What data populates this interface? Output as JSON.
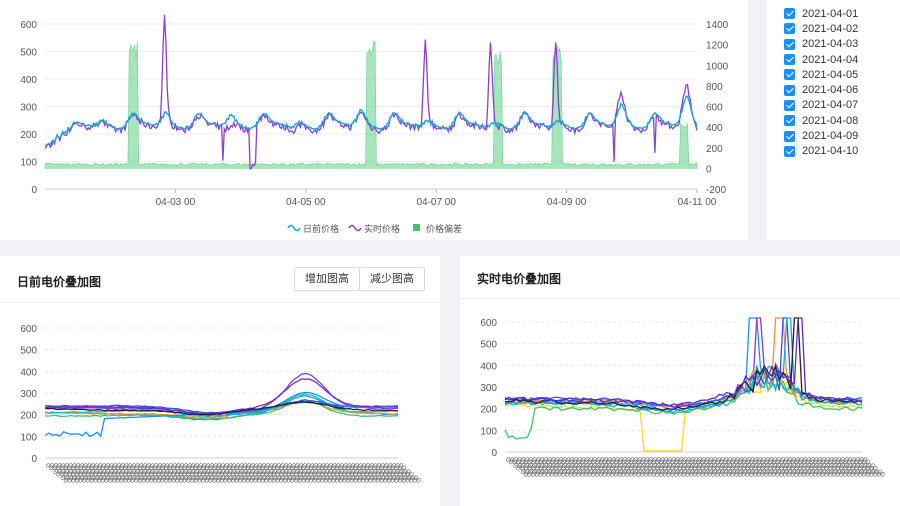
{
  "main_chart": {
    "legend": [
      {
        "label": "日前价格",
        "color": "#1ba3d4"
      },
      {
        "label": "实时价格",
        "color": "#8a3fd1"
      },
      {
        "label": "价格偏差",
        "color": "#3dc46a"
      }
    ]
  },
  "date_filter": {
    "items": [
      {
        "label": "2021-04-01",
        "checked": true
      },
      {
        "label": "2021-04-02",
        "checked": true
      },
      {
        "label": "2021-04-03",
        "checked": true
      },
      {
        "label": "2021-04-04",
        "checked": true
      },
      {
        "label": "2021-04-05",
        "checked": true
      },
      {
        "label": "2021-04-06",
        "checked": true
      },
      {
        "label": "2021-04-07",
        "checked": true
      },
      {
        "label": "2021-04-08",
        "checked": true
      },
      {
        "label": "2021-04-09",
        "checked": true
      },
      {
        "label": "2021-04-10",
        "checked": true
      }
    ]
  },
  "day_ahead_panel": {
    "title": "日前电价叠加图",
    "increase_button": "增加图高",
    "decrease_button": "减少图高"
  },
  "realtime_panel": {
    "title": "实时电价叠加图"
  },
  "chart_data": [
    {
      "type": "line",
      "x_ticks": [
        "04-03 00",
        "04-05 00",
        "04-07 00",
        "04-09 00",
        "04-11 00"
      ],
      "x_range": [
        "2021-04-01 00",
        "2021-04-11 00"
      ],
      "ylim_left": [
        0,
        600
      ],
      "yticks_left": [
        "0",
        "100",
        "200",
        "300",
        "400",
        "500",
        "600"
      ],
      "ylim_right": [
        -200,
        1400
      ],
      "yticks_right": [
        "-200",
        "0",
        "200",
        "400",
        "600",
        "800",
        "1000",
        "1200",
        "1400"
      ],
      "legend_position": "bottom",
      "series": [
        {
          "name": "日前价格",
          "color": "#1ba3d4",
          "axis": "left",
          "day_profile": [
            230,
            225,
            222,
            220,
            222,
            228,
            240,
            255,
            262,
            258,
            250,
            245,
            240,
            238,
            235,
            233,
            232,
            236,
            245,
            262,
            278,
            270,
            252,
            238
          ],
          "day_peak": [
            240,
            270,
            260,
            230,
            280,
            240,
            230,
            240,
            300,
            330
          ]
        },
        {
          "name": "实时价格",
          "color": "#8a3fd1",
          "axis": "left",
          "day_peak": [
            290,
            630,
            240,
            270,
            280,
            540,
            540,
            540,
            330,
            330
          ]
        },
        {
          "name": "价格偏差",
          "color": "#3dc46a",
          "axis": "right",
          "style": "area",
          "spikes": [
            {
              "day": 1.35,
              "value": 1250
            },
            {
              "day": 5.0,
              "value": 1250
            },
            {
              "day": 6.95,
              "value": 1200
            },
            {
              "day": 7.85,
              "value": 1200
            },
            {
              "day": 9.8,
              "value": 450
            }
          ]
        }
      ]
    },
    {
      "type": "line",
      "title": "日前电价叠加图",
      "ylim": [
        0,
        600
      ],
      "yticks": [
        "0",
        "100",
        "200",
        "300",
        "400",
        "500",
        "600"
      ],
      "series": [
        {
          "name": "2021-04-01",
          "color": "#3f51b5",
          "base": 230,
          "peak": 260
        },
        {
          "name": "2021-04-02",
          "color": "#7b3fd1",
          "base": 225,
          "peak": 385
        },
        {
          "name": "2021-04-03",
          "color": "#1ba3d4",
          "base": 205,
          "peak": 280
        },
        {
          "name": "2021-04-04",
          "color": "#ff8c3a",
          "base": 210,
          "peak": 255
        },
        {
          "name": "2021-04-05",
          "color": "#3dc46a",
          "base": 200,
          "peak": 265
        },
        {
          "name": "2021-04-06",
          "color": "#13c2c2",
          "base": 215,
          "peak": 300
        },
        {
          "name": "2021-04-07",
          "color": "#2f54eb",
          "base": 235,
          "peak": 270
        },
        {
          "name": "2021-04-08",
          "color": "#1890ff",
          "base": 130,
          "peak": 290
        },
        {
          "name": "2021-04-09",
          "color": "#722ed1",
          "base": 235,
          "peak": 360
        },
        {
          "name": "2021-04-10",
          "color": "#222222",
          "base": 225,
          "peak": 255
        }
      ]
    },
    {
      "type": "line",
      "title": "实时电价叠加图",
      "ylim": [
        0,
        600
      ],
      "yticks": [
        "0",
        "100",
        "200",
        "300",
        "400",
        "500",
        "600"
      ],
      "series": [
        {
          "name": "2021-04-01",
          "color": "#1890ff",
          "base": 225,
          "spike": true
        },
        {
          "name": "2021-04-02",
          "color": "#7b3fd1",
          "base": 240,
          "spike": true
        },
        {
          "name": "2021-04-03",
          "color": "#fadb14",
          "base": 210,
          "dip": true
        },
        {
          "name": "2021-04-04",
          "color": "#3dc46a",
          "base": 205,
          "spike": false
        },
        {
          "name": "2021-04-05",
          "color": "#13c2c2",
          "base": 230,
          "spike": false
        },
        {
          "name": "2021-04-06",
          "color": "#ff8c3a",
          "base": 235,
          "spike": true
        },
        {
          "name": "2021-04-07",
          "color": "#2f54eb",
          "base": 240,
          "spike": true
        },
        {
          "name": "2021-04-08",
          "color": "#1ba3d4",
          "base": 220,
          "spike": true
        },
        {
          "name": "2021-04-09",
          "color": "#222222",
          "base": 230,
          "spike": true
        },
        {
          "name": "2021-04-10",
          "color": "#5b2bd1",
          "base": 245,
          "spike": true
        }
      ]
    }
  ]
}
